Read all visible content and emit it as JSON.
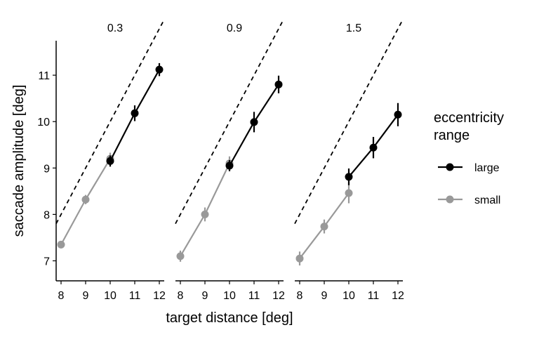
{
  "chart_data": {
    "type": "line",
    "xlabel": "target distance [deg]",
    "ylabel": "saccade amplitude [deg]",
    "xticks": [
      8,
      9,
      10,
      11,
      12
    ],
    "yticks": [
      7,
      8,
      9,
      10,
      11
    ],
    "xlim": [
      7.8,
      12.2
    ],
    "ylim": [
      6.6,
      11.7
    ],
    "grid": false,
    "legend": {
      "title": "eccentricity range",
      "title_lines": [
        "eccentricity",
        "range"
      ],
      "position": "right",
      "entries": [
        {
          "label": "large",
          "color": "#000000"
        },
        {
          "label": "small",
          "color": "#999999"
        }
      ]
    },
    "reference_line": {
      "style": "dashed",
      "color": "#000000",
      "x": [
        7.8,
        12.2
      ],
      "y": [
        7.8,
        12.2
      ]
    },
    "panels": [
      {
        "title": "0.3",
        "series": [
          {
            "name": "small",
            "color": "#999999",
            "x": [
              8,
              9,
              10
            ],
            "y": [
              7.35,
              8.32,
              9.2
            ],
            "err": [
              0.08,
              0.1,
              0.13
            ]
          },
          {
            "name": "large",
            "color": "#000000",
            "x": [
              10,
              11,
              12
            ],
            "y": [
              9.15,
              10.18,
              11.12
            ],
            "err": [
              0.12,
              0.17,
              0.14
            ]
          }
        ]
      },
      {
        "title": "0.9",
        "series": [
          {
            "name": "small",
            "color": "#999999",
            "x": [
              8,
              9,
              10
            ],
            "y": [
              7.1,
              8.0,
              9.1
            ],
            "err": [
              0.12,
              0.15,
              0.15
            ]
          },
          {
            "name": "large",
            "color": "#000000",
            "x": [
              10,
              11,
              12
            ],
            "y": [
              9.05,
              9.99,
              10.8
            ],
            "err": [
              0.12,
              0.22,
              0.19
            ]
          }
        ]
      },
      {
        "title": "1.5",
        "series": [
          {
            "name": "small",
            "color": "#999999",
            "x": [
              8,
              9,
              10
            ],
            "y": [
              7.05,
              7.74,
              8.46
            ],
            "err": [
              0.15,
              0.15,
              0.22
            ]
          },
          {
            "name": "large",
            "color": "#000000",
            "x": [
              10,
              11,
              12
            ],
            "y": [
              8.81,
              9.44,
              10.15
            ],
            "err": [
              0.18,
              0.23,
              0.25
            ]
          }
        ]
      }
    ]
  }
}
